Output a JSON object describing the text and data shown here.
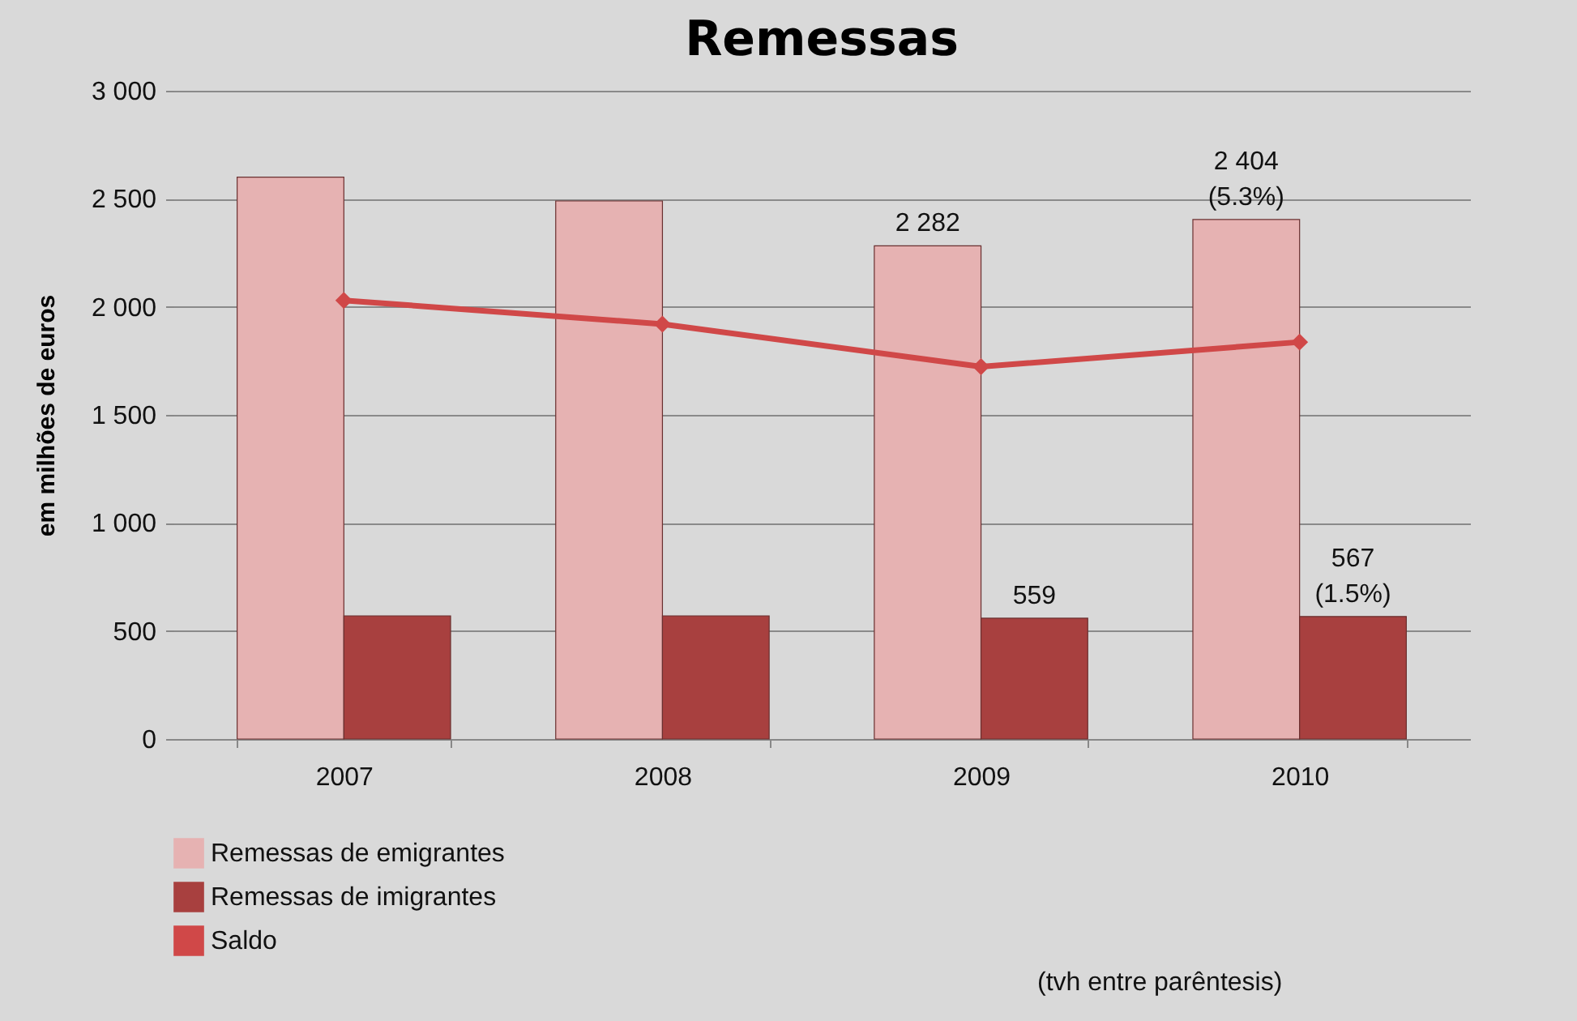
{
  "chart_data": {
    "type": "bar",
    "title": "Remessas",
    "ylabel": "em milhões de euros",
    "categories": [
      "2007",
      "2008",
      "2009",
      "2010"
    ],
    "series": [
      {
        "name": "Remessas de emigrantes",
        "color": "#e6b2b2",
        "values": [
          2600,
          2490,
          2282,
          2404
        ],
        "value_labels": [
          null,
          null,
          "2 282",
          "2 404 (5.3%)"
        ]
      },
      {
        "name": "Remessas de imigrantes",
        "color": "#a8403f",
        "values": [
          570,
          570,
          559,
          567
        ],
        "value_labels": [
          null,
          null,
          "559",
          "567 (1.5%)"
        ]
      },
      {
        "name": "Saldo",
        "type": "line",
        "color": "#d04848",
        "values": [
          2030,
          1920,
          1723,
          1837
        ],
        "marker": "diamond"
      }
    ],
    "ylim": [
      0,
      3000
    ],
    "yticks": [
      0,
      {
        "value": 500,
        "label": "500"
      },
      {
        "value": 1000,
        "label": "1 000"
      },
      {
        "value": 1500,
        "label": "1 500"
      },
      {
        "value": 2000,
        "label": "2 000"
      },
      {
        "value": 2500,
        "label": "2 500"
      },
      {
        "value": 3000,
        "label": "3 000"
      }
    ],
    "grid": "y",
    "legend": "bottom",
    "annotations": [
      "(tvh entre parêntesis)"
    ]
  }
}
